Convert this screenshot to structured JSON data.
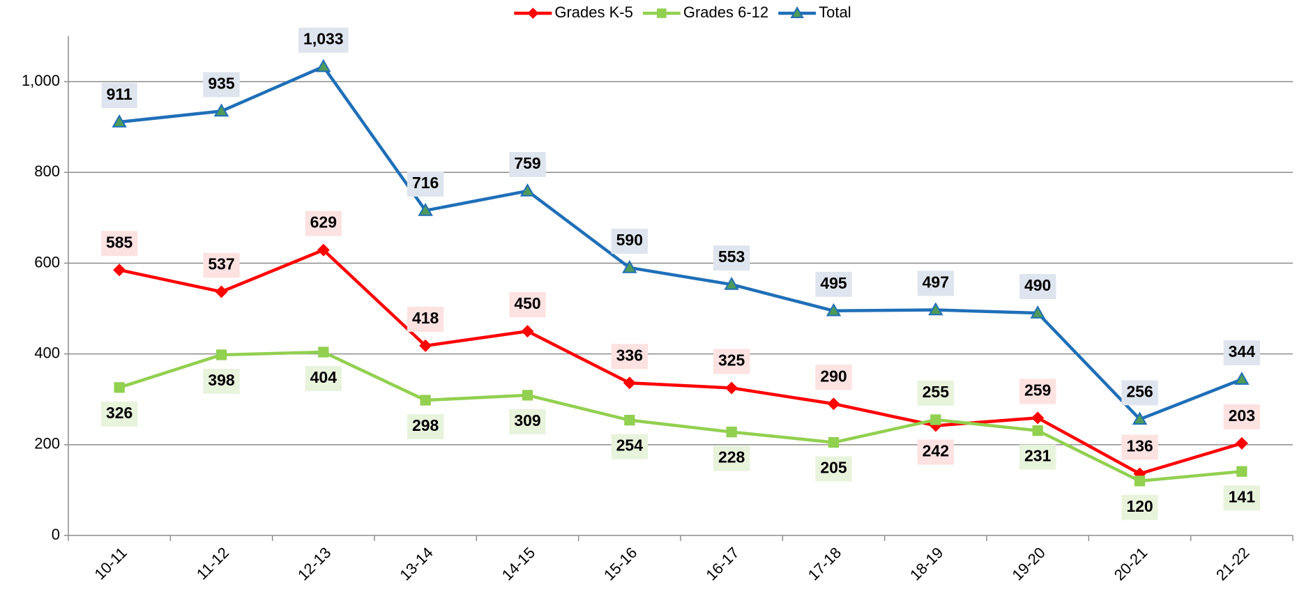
{
  "chart_data": {
    "type": "line",
    "categories": [
      "10-11",
      "11-12",
      "12-13",
      "13-14",
      "14-15",
      "15-16",
      "16-17",
      "17-18",
      "18-19",
      "19-20",
      "20-21",
      "21-22"
    ],
    "series": [
      {
        "name": "Grades K-5",
        "color": "#ff0000",
        "marker": "diamond",
        "label_bg": "#fde2e2",
        "values": [
          585,
          537,
          629,
          418,
          450,
          336,
          325,
          290,
          242,
          259,
          136,
          203
        ]
      },
      {
        "name": "Grades 6-12",
        "color": "#92d050",
        "marker": "square",
        "label_bg": "#e8f3dc",
        "values": [
          326,
          398,
          404,
          298,
          309,
          254,
          228,
          205,
          255,
          231,
          120,
          141
        ]
      },
      {
        "name": "Total",
        "color": "#1f6fb8",
        "marker": "triangle",
        "label_bg": "#dfe5ee",
        "values": [
          911,
          935,
          1033,
          716,
          759,
          590,
          553,
          495,
          497,
          490,
          256,
          344
        ],
        "value_labels": [
          "911",
          "935",
          "1,033",
          "716",
          "759",
          "590",
          "553",
          "495",
          "497",
          "490",
          "256",
          "344"
        ]
      }
    ],
    "ylim": [
      0,
      1100
    ],
    "yticks": [
      0,
      200,
      400,
      600,
      800,
      {
        "value": 1000,
        "label": "1,000"
      }
    ],
    "grid": true,
    "legend": "top"
  }
}
